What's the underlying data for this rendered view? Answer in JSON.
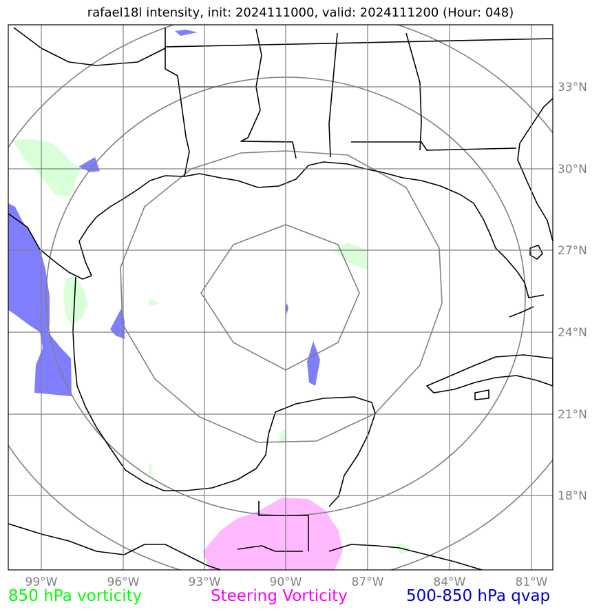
{
  "title": "rafael18l intensity, init: 2024111000, valid: 2024111200 (Hour: 048)",
  "map": {
    "extent": {
      "lon": [
        -100.2,
        -79.8
      ],
      "lat": [
        15.2,
        35.2
      ]
    },
    "lon_ticks": [
      {
        "value": -99,
        "label": "99°W"
      },
      {
        "value": -96,
        "label": "96°W"
      },
      {
        "value": -93,
        "label": "93°W"
      },
      {
        "value": -90,
        "label": "90°W"
      },
      {
        "value": -87,
        "label": "87°W"
      },
      {
        "value": -84,
        "label": "84°W"
      },
      {
        "value": -81,
        "label": "81°W"
      }
    ],
    "lat_ticks": [
      {
        "value": 18,
        "label": "18°N"
      },
      {
        "value": 21,
        "label": "21°N"
      },
      {
        "value": 24,
        "label": "24°N"
      },
      {
        "value": 27,
        "label": "27°N"
      },
      {
        "value": 30,
        "label": "30°N"
      },
      {
        "value": 33,
        "label": "33°N"
      }
    ],
    "grid": true,
    "range_rings_center": {
      "lon": -90,
      "lat": 25.2
    },
    "colors": {
      "vorticity_850": "#00ff00",
      "steering_vorticity": "#ff00ff",
      "qvap": "#0000cc",
      "grid": "#808080",
      "coast": "#000000"
    }
  },
  "legend": {
    "vort850": "850 hPa vorticity",
    "steering": "Steering Vorticity",
    "qvap": "500-850 hPa qvap"
  }
}
